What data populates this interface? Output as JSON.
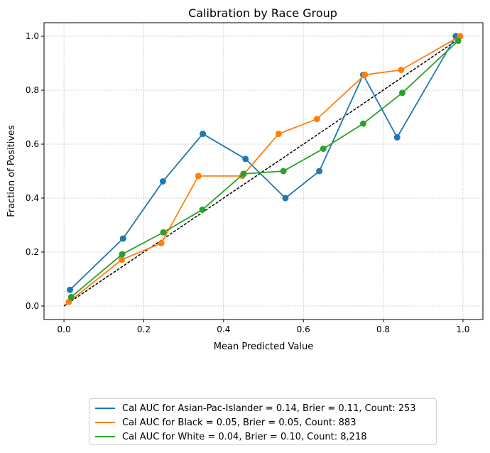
{
  "chart_data": {
    "type": "line",
    "title": "Calibration by Race Group",
    "xlabel": "Mean Predicted Value",
    "ylabel": "Fraction of Positives",
    "xlim": [
      -0.05,
      1.05
    ],
    "ylim": [
      -0.05,
      1.05
    ],
    "xticks": [
      "0.0",
      "0.2",
      "0.4",
      "0.6",
      "0.8",
      "1.0"
    ],
    "yticks": [
      "0.0",
      "0.2",
      "0.4",
      "0.6",
      "0.8",
      "1.0"
    ],
    "grid": true,
    "legend_position": "below",
    "reference_line": {
      "style": "dashed",
      "color": "#000000",
      "points": [
        [
          0,
          0
        ],
        [
          1,
          1
        ]
      ]
    },
    "series": [
      {
        "name": "Cal AUC for Asian-Pac-Islander = 0.14, Brier = 0.11, Count: 253",
        "color": "#1f77b4",
        "x": [
          0.015,
          0.148,
          0.248,
          0.348,
          0.455,
          0.555,
          0.64,
          0.75,
          0.835,
          0.982
        ],
        "y": [
          0.06,
          0.25,
          0.462,
          0.638,
          0.545,
          0.4,
          0.5,
          0.857,
          0.625,
          1.0
        ]
      },
      {
        "name": "Cal AUC for Black = 0.05, Brier = 0.05, Count: 883",
        "color": "#ff7f0e",
        "x": [
          0.012,
          0.145,
          0.244,
          0.337,
          0.447,
          0.538,
          0.634,
          0.754,
          0.845,
          0.993
        ],
        "y": [
          0.015,
          0.172,
          0.233,
          0.482,
          0.482,
          0.638,
          0.693,
          0.857,
          0.875,
          1.0
        ]
      },
      {
        "name": "Cal AUC for White = 0.04, Brier = 0.10, Count: 8,218",
        "color": "#2ca02c",
        "x": [
          0.018,
          0.146,
          0.249,
          0.347,
          0.45,
          0.55,
          0.65,
          0.75,
          0.848,
          0.988
        ],
        "y": [
          0.033,
          0.192,
          0.273,
          0.357,
          0.49,
          0.5,
          0.583,
          0.676,
          0.79,
          0.983
        ]
      }
    ]
  }
}
